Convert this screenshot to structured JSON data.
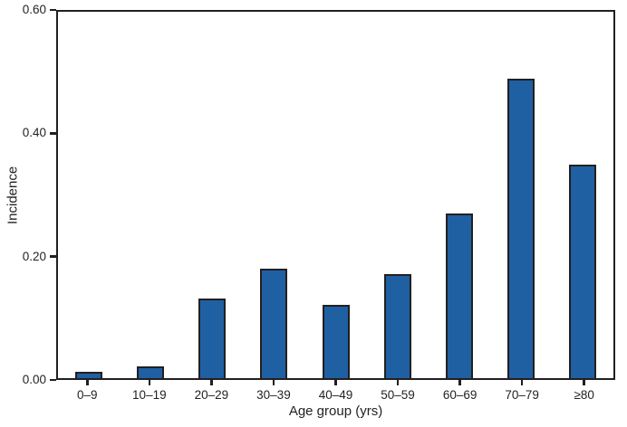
{
  "chart_data": {
    "type": "bar",
    "title": "",
    "xlabel": "Age group (yrs)",
    "ylabel": "Incidence",
    "categories": [
      "0–9",
      "10–19",
      "20–29",
      "30–39",
      "40–49",
      "50–59",
      "60–69",
      "70–79",
      "≥80"
    ],
    "values": [
      0.01,
      0.02,
      0.13,
      0.18,
      0.12,
      0.17,
      0.27,
      0.49,
      0.35
    ],
    "ylim": [
      0,
      0.6
    ],
    "y_ticks": [
      "0.00",
      "0.20",
      "0.40",
      "0.60"
    ],
    "grid": false,
    "legend": "none",
    "colors": {
      "bar_fill": "#1f60a2",
      "bar_border": "#231f20",
      "axis": "#231f20",
      "text": "#231f20"
    }
  }
}
